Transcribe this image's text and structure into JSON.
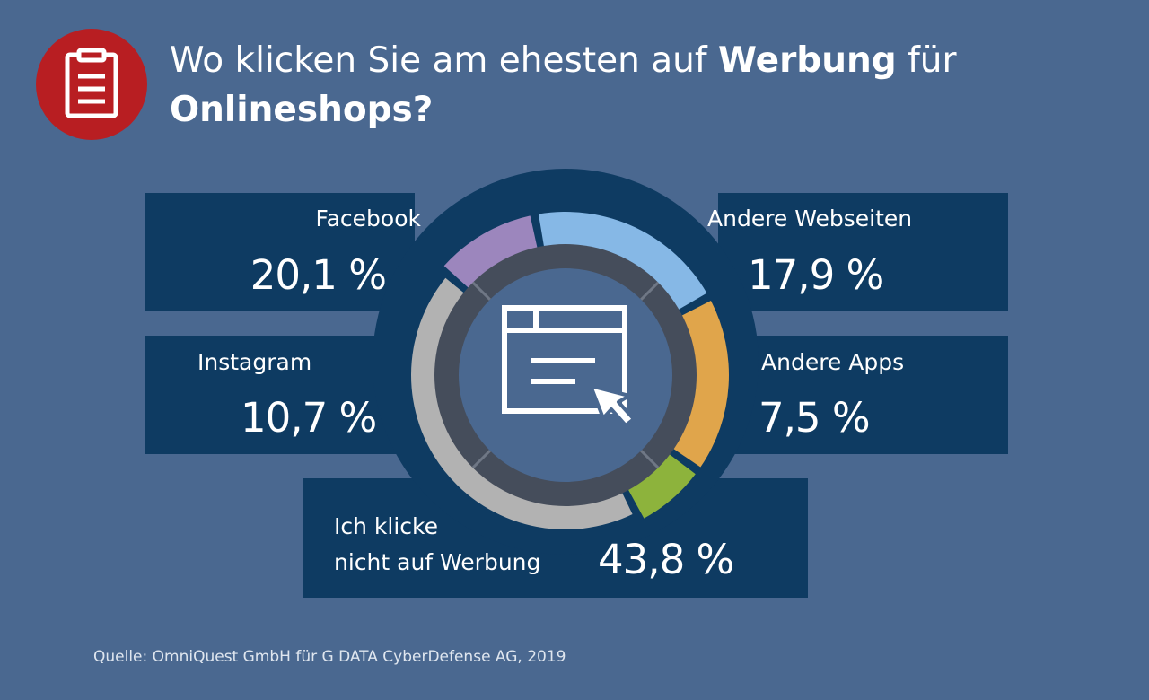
{
  "title": {
    "part1": "Wo klicken Sie am ehesten auf ",
    "bold1": "Werbung",
    "part2": " für ",
    "bold2": "Onlineshops?"
  },
  "source": "Quelle: OmniQuest GmbH für G DATA CyberDefense AG, 2019",
  "icons": {
    "header": "clipboard-icon",
    "center": "browser-window-cursor-icon"
  },
  "colors": {
    "background": "#4a6890",
    "box": "#0e3b62",
    "header_circle": "#b81e22",
    "facebook": "#86b8e6",
    "other_websites": "#e0a54b",
    "other_apps": "#8db33c",
    "instagram": "#9c86bd",
    "no_ads": "#b2b2b2"
  },
  "chart_data": {
    "type": "pie",
    "title": "Wo klicken Sie am ehesten auf Werbung für Onlineshops?",
    "unit": "%",
    "slices": [
      {
        "label": "Facebook",
        "value": 20.1,
        "display": "20,1 %",
        "color": "#86b8e6"
      },
      {
        "label": "Andere Webseiten",
        "value": 17.9,
        "display": "17,9 %",
        "color": "#e0a54b"
      },
      {
        "label": "Andere Apps",
        "value": 7.5,
        "display": "7,5 %",
        "color": "#8db33c"
      },
      {
        "label": "Ich klicke nicht auf Werbung",
        "label_line1": "Ich klicke",
        "label_line2": "nicht auf Werbung",
        "value": 43.8,
        "display": "43,8 %",
        "color": "#b2b2b2"
      },
      {
        "label": "Instagram",
        "value": 10.7,
        "display": "10,7 %",
        "color": "#9c86bd"
      }
    ]
  }
}
